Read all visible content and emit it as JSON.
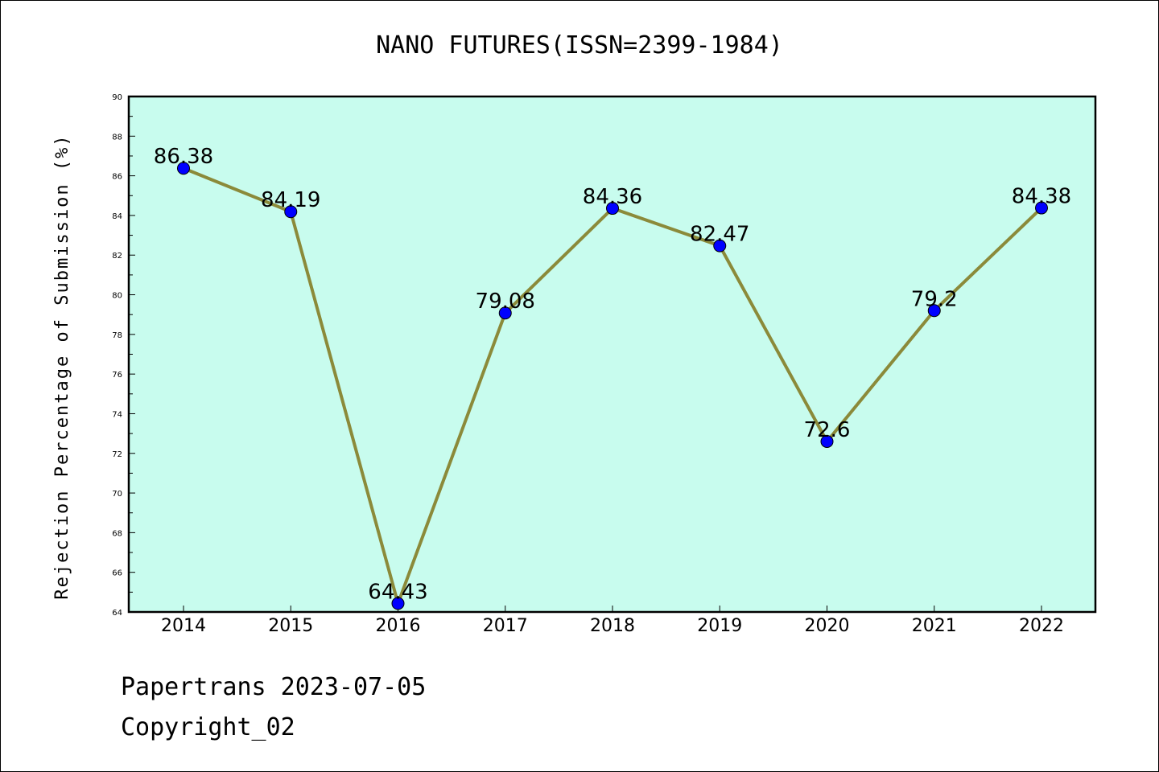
{
  "chart_data": {
    "type": "line",
    "title": "NANO FUTURES(ISSN=2399-1984)",
    "ylabel": "Rejection Percentage of Submission (%)",
    "xlabel": "",
    "categories": [
      "2014",
      "2015",
      "2016",
      "2017",
      "2018",
      "2019",
      "2020",
      "2021",
      "2022"
    ],
    "series": [
      {
        "values": [
          86.38,
          84.19,
          64.43,
          79.08,
          84.36,
          82.47,
          72.6,
          79.2,
          84.38
        ]
      }
    ],
    "data_labels": [
      "86.38",
      "84.19",
      "64.43",
      "79.08",
      "84.36",
      "82.47",
      "72.6",
      "79.2",
      "84.38"
    ],
    "ylim": [
      64,
      90
    ],
    "yticks": [
      64,
      66,
      68,
      70,
      72,
      74,
      76,
      78,
      80,
      82,
      84,
      86,
      88,
      90
    ],
    "grid": false,
    "colors": {
      "plot_background": "#c8fcee",
      "line": "#8b8a3a",
      "marker": "#0000ff"
    }
  },
  "footer": {
    "line1": "Papertrans 2023-07-05",
    "line2": "Copyright_02"
  }
}
